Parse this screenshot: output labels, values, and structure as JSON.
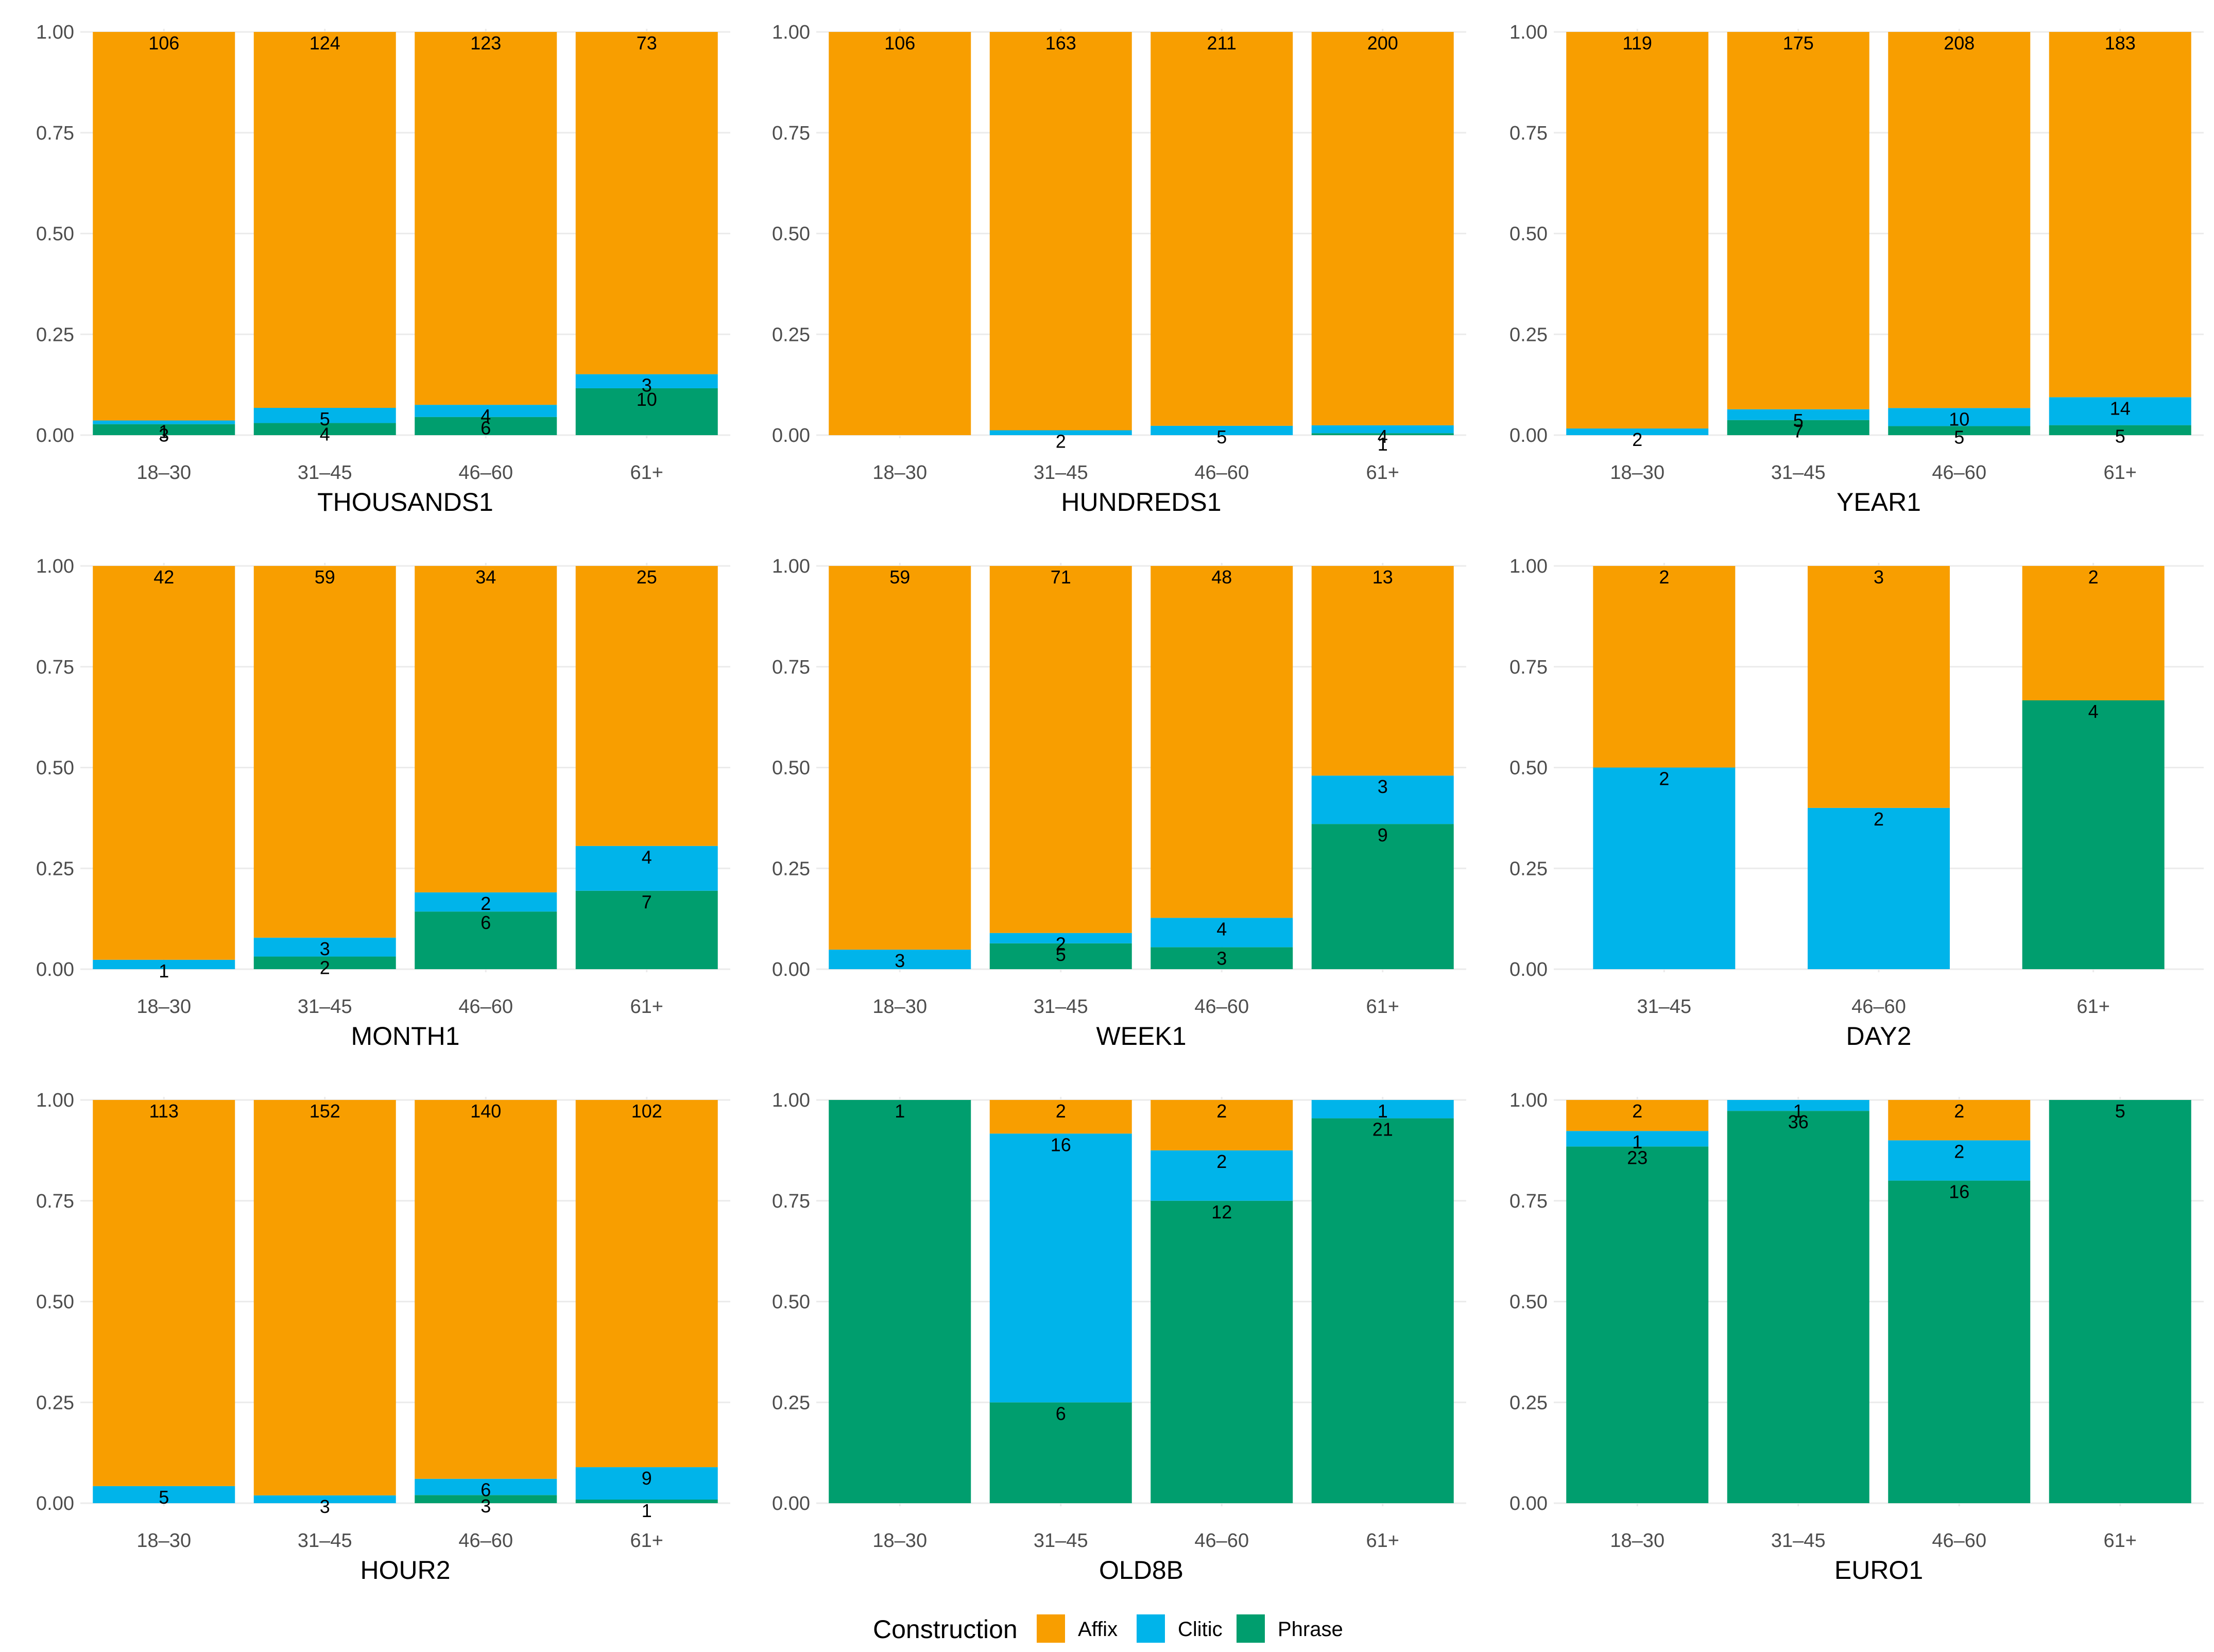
{
  "chart_data": {
    "type": "bar",
    "stacked": "proportional",
    "y_ticks": [
      "0.00",
      "0.25",
      "0.50",
      "0.75",
      "1.00"
    ],
    "ylim": [
      0,
      1
    ],
    "legend": {
      "title": "Construction",
      "position": "bottom",
      "entries": [
        {
          "name": "Affix",
          "color": "#F89E00"
        },
        {
          "name": "Clitic",
          "color": "#00B4EA"
        },
        {
          "name": "Phrase",
          "color": "#009E6E"
        }
      ]
    },
    "panels": [
      {
        "title": "THOUSANDS1",
        "categories": [
          "18–30",
          "31–45",
          "46–60",
          "61+"
        ],
        "series": {
          "Phrase": [
            3,
            4,
            6,
            10
          ],
          "Clitic": [
            1,
            5,
            4,
            3
          ],
          "Affix": [
            106,
            124,
            123,
            73
          ]
        }
      },
      {
        "title": "HUNDREDS1",
        "categories": [
          "18–30",
          "31–45",
          "46–60",
          "61+"
        ],
        "series": {
          "Phrase": [
            0,
            0,
            0,
            1
          ],
          "Clitic": [
            0,
            2,
            5,
            4
          ],
          "Affix": [
            106,
            163,
            211,
            200
          ]
        }
      },
      {
        "title": "YEAR1",
        "categories": [
          "18–30",
          "31–45",
          "46–60",
          "61+"
        ],
        "series": {
          "Phrase": [
            0,
            7,
            5,
            5
          ],
          "Clitic": [
            2,
            5,
            10,
            14
          ],
          "Affix": [
            119,
            175,
            208,
            183
          ]
        }
      },
      {
        "title": "MONTH1",
        "categories": [
          "18–30",
          "31–45",
          "46–60",
          "61+"
        ],
        "series": {
          "Phrase": [
            0,
            2,
            6,
            7
          ],
          "Clitic": [
            1,
            3,
            2,
            4
          ],
          "Affix": [
            42,
            59,
            34,
            25
          ]
        }
      },
      {
        "title": "WEEK1",
        "categories": [
          "18–30",
          "31–45",
          "46–60",
          "61+"
        ],
        "series": {
          "Phrase": [
            0,
            5,
            3,
            9
          ],
          "Clitic": [
            3,
            2,
            4,
            3
          ],
          "Affix": [
            59,
            71,
            48,
            13
          ]
        }
      },
      {
        "title": "DAY2",
        "categories": [
          "31–45",
          "46–60",
          "61+"
        ],
        "series": {
          "Phrase": [
            0,
            0,
            4
          ],
          "Clitic": [
            2,
            2,
            0
          ],
          "Affix": [
            2,
            3,
            2
          ]
        }
      },
      {
        "title": "HOUR2",
        "categories": [
          "18–30",
          "31–45",
          "46–60",
          "61+"
        ],
        "series": {
          "Phrase": [
            0,
            0,
            3,
            1
          ],
          "Clitic": [
            5,
            3,
            6,
            9
          ],
          "Affix": [
            113,
            152,
            140,
            102
          ]
        }
      },
      {
        "title": "OLD8B",
        "categories": [
          "18–30",
          "31–45",
          "46–60",
          "61+"
        ],
        "series": {
          "Phrase": [
            1,
            6,
            12,
            21
          ],
          "Clitic": [
            0,
            16,
            2,
            1
          ],
          "Affix": [
            0,
            2,
            2,
            0
          ]
        }
      },
      {
        "title": "EURO1",
        "categories": [
          "18–30",
          "31–45",
          "46–60",
          "61+"
        ],
        "series": {
          "Phrase": [
            23,
            36,
            16,
            5
          ],
          "Clitic": [
            1,
            1,
            2,
            0
          ],
          "Affix": [
            2,
            0,
            2,
            0
          ]
        }
      }
    ]
  }
}
